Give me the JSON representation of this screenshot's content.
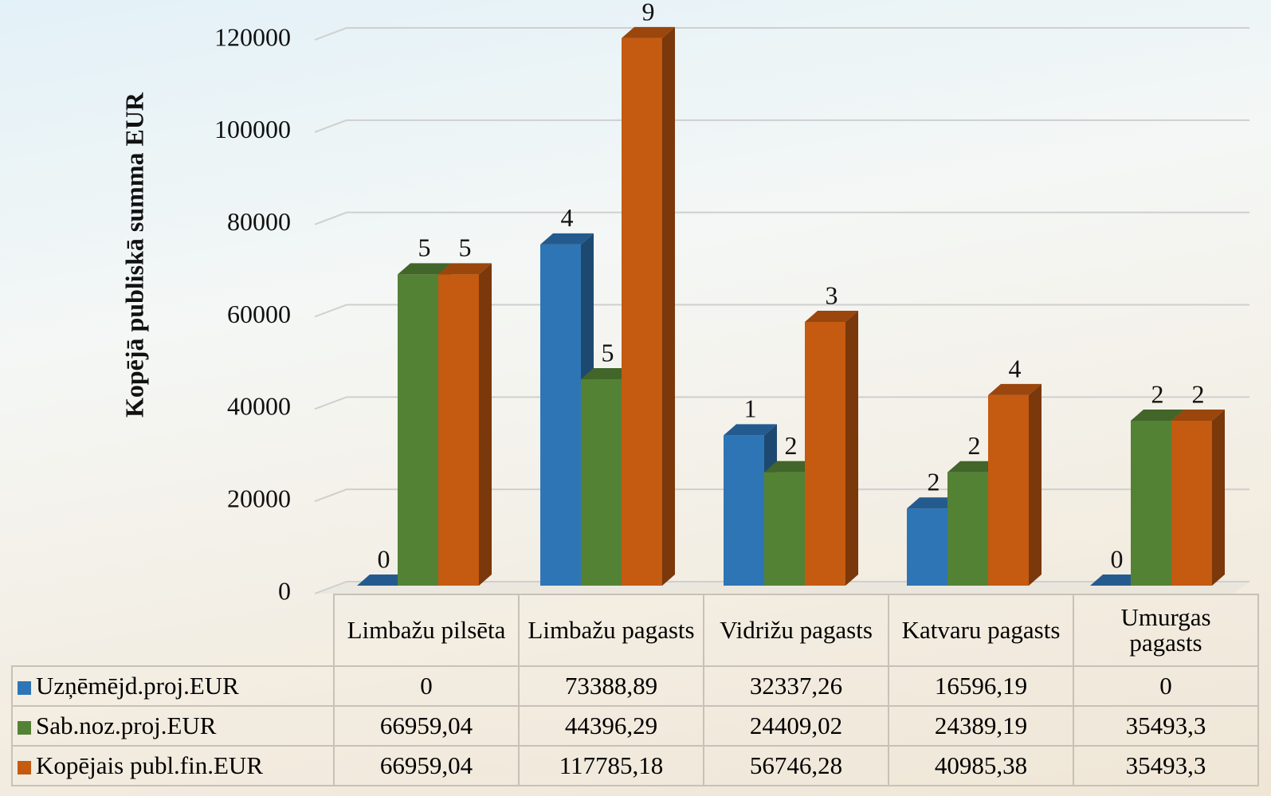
{
  "chart_data": {
    "type": "bar",
    "y_label": "Kopējā publiskā summa EUR",
    "categories": [
      "Limbažu pilsēta",
      "Limbažu pagasts",
      "Vidrižu pagasts",
      "Katvaru pagasts",
      "Umurgas pagasts"
    ],
    "series": [
      {
        "name": "Uzņēmējd.proj.EUR",
        "color": "#2e75b6",
        "values": [
          0,
          73388.89,
          32337.26,
          16596.19,
          0
        ],
        "value_labels": [
          "0",
          "73388,89",
          "32337,26",
          "16596,19",
          "0"
        ],
        "counts": [
          0,
          4,
          1,
          2,
          0
        ]
      },
      {
        "name": "Sab.noz.proj.EUR",
        "color": "#548235",
        "values": [
          66959.04,
          44396.29,
          24409.02,
          24389.19,
          35493.3
        ],
        "value_labels": [
          "66959,04",
          "44396,29",
          "24409,02",
          "24389,19",
          "35493,3"
        ],
        "counts": [
          5,
          5,
          2,
          2,
          2
        ]
      },
      {
        "name": "Kopējais publ.fin.EUR",
        "color": "#c55a11",
        "values": [
          66959.04,
          117785.18,
          56746.28,
          40985.38,
          35493.3
        ],
        "value_labels": [
          "66959,04",
          "117785,18",
          "56746,28",
          "40985,38",
          "35493,3"
        ],
        "counts": [
          5,
          9,
          3,
          4,
          2
        ]
      }
    ],
    "ylim": [
      0,
      120000
    ],
    "yticks": [
      0,
      20000,
      40000,
      60000,
      80000,
      100000,
      120000
    ],
    "grid": true
  }
}
